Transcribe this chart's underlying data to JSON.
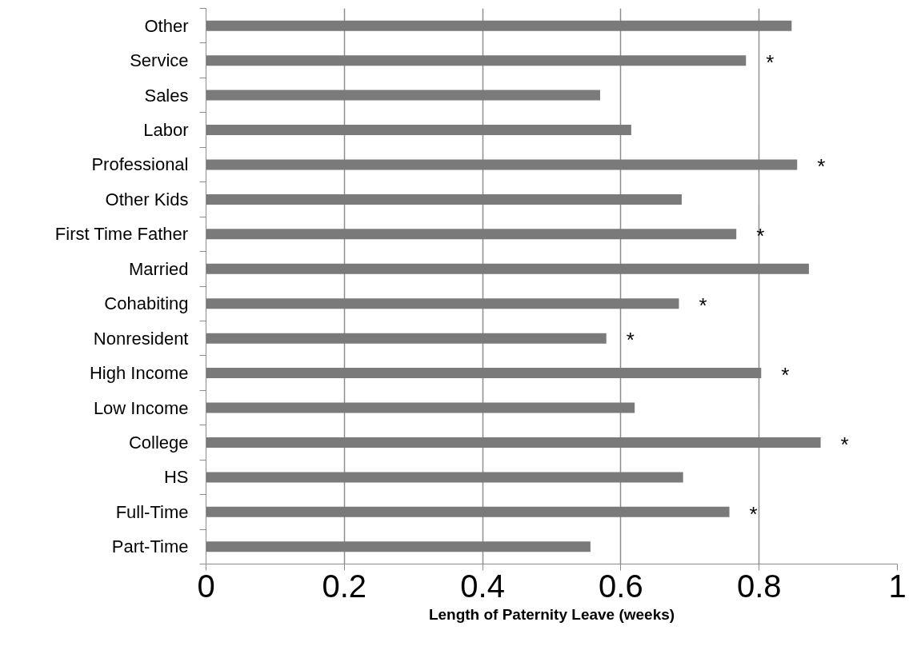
{
  "chart_data": {
    "type": "bar",
    "orientation": "horizontal",
    "xlabel": "Length of Paternity Leave (weeks)",
    "categories": [
      "Other",
      "Service",
      "Sales",
      "Labor",
      "Professional",
      "Other Kids",
      "First Time Father",
      "Married",
      "Cohabiting",
      "Nonresident",
      "High Income",
      "Low Income",
      "College",
      "HS",
      "Full-Time",
      "Part-Time"
    ],
    "values": [
      0.847,
      0.781,
      0.57,
      0.615,
      0.855,
      0.688,
      0.767,
      0.872,
      0.684,
      0.579,
      0.803,
      0.62,
      0.889,
      0.69,
      0.757,
      0.556
    ],
    "color": "#7a7a7a",
    "xlim": [
      0,
      1
    ],
    "xticks": [
      0,
      0.2,
      0.4,
      0.6,
      0.8,
      1
    ],
    "grid": "x",
    "annotations": [
      {
        "text": "*",
        "x": 0.781,
        "y": "Service"
      },
      {
        "text": "*",
        "x": 0.855,
        "y": "Professional"
      },
      {
        "text": "*",
        "x": 0.767,
        "y": "First Time Father"
      },
      {
        "text": "*",
        "x": 0.684,
        "y": "Cohabiting"
      },
      {
        "text": "*",
        "x": 0.579,
        "y": "Nonresident"
      },
      {
        "text": "*",
        "x": 0.803,
        "y": "High Income"
      },
      {
        "text": "*",
        "x": 0.889,
        "y": "College"
      },
      {
        "text": "*",
        "x": 0.757,
        "y": "Full-Time"
      }
    ]
  }
}
